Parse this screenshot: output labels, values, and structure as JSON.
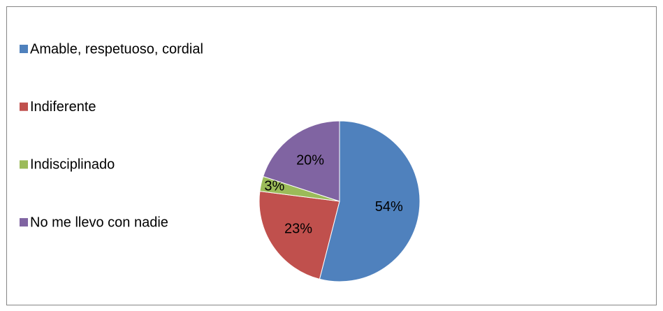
{
  "chart_data": {
    "type": "pie",
    "categories": [
      "Amable, respetuoso, cordial",
      "Indiferente",
      "Indisciplinado",
      "No me llevo con nadie"
    ],
    "values": [
      54,
      23,
      3,
      20
    ],
    "value_labels": [
      "54%",
      "23%",
      "3%",
      "20%"
    ],
    "colors": [
      "#4f81bd",
      "#c0504d",
      "#9bbb59",
      "#8064a2"
    ],
    "legend": "left"
  }
}
